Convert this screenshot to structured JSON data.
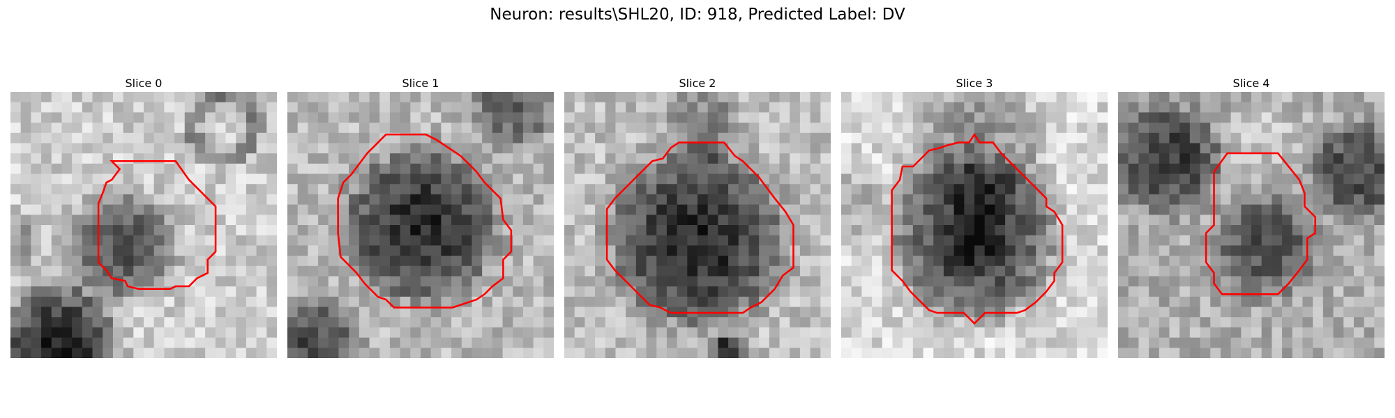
{
  "figure": {
    "title": "Neuron: results\\SHL20, ID: 918, Predicted Label: DV"
  },
  "contour_color": "#ff0000",
  "panels": [
    {
      "title": "Slice 0"
    },
    {
      "title": "Slice 1"
    },
    {
      "title": "Slice 2"
    },
    {
      "title": "Slice 3"
    },
    {
      "title": "Slice 4"
    }
  ]
}
